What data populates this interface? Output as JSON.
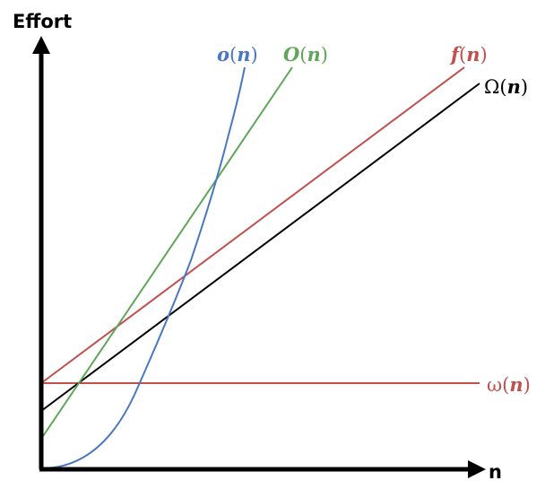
{
  "axes": {
    "y_label": "Effort",
    "x_label": "n"
  },
  "curves": {
    "little_o": {
      "symbol": "o",
      "arg": "n",
      "color": "#4a78c0"
    },
    "big_o": {
      "symbol": "O",
      "arg": "n",
      "color": "#5fa55a"
    },
    "f": {
      "symbol": "f",
      "arg": "n",
      "color": "#c0504d"
    },
    "big_omega": {
      "symbol": "Ω",
      "arg": "n",
      "color": "#000000"
    },
    "little_omega": {
      "symbol": "ω",
      "arg": "n",
      "color": "#c0504d"
    }
  }
}
